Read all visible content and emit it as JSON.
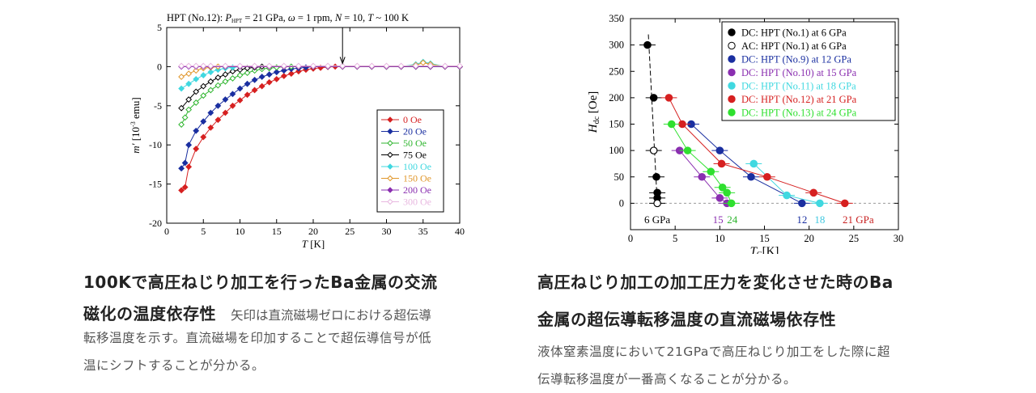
{
  "left_caption": {
    "title_line1": "100Kで高圧ねじり加工を行ったBa金属の交流",
    "title_line2": "磁化の温度依存性",
    "body_line1": "矢印は直流磁場ゼロにおける超伝導",
    "body_line2": "転移温度を示す。直流磁場を印加することで超伝導信号が低",
    "body_line3": "温にシフトすることが分かる。"
  },
  "right_caption": {
    "title_line1": "高圧ねじり加工の加工圧力を変化させた時のBa",
    "title_line2": "金属の超伝導転移温度の直流磁場依存性",
    "body_line1": "液体窒素温度において21GPaで高圧ねじり加工をした際に超",
    "body_line2": "伝導転移温度が一番高くなることが分かる。"
  },
  "chart_data": [
    {
      "type": "scatter",
      "title": "HPT (No.12): P_HPT = 21 GPa, ω = 1 rpm, N = 10, T ~ 100 K",
      "xlabel": "T [K]",
      "ylabel": "m' [10⁻³ emu]",
      "xlim": [
        0,
        40
      ],
      "ylim": [
        -20,
        5
      ],
      "xticks": [
        0,
        5,
        10,
        15,
        20,
        25,
        30,
        35,
        40
      ],
      "yticks": [
        5,
        0,
        -5,
        -10,
        -15,
        -20
      ],
      "legend_placement": "bottom-right",
      "arrow_at_x": 24,
      "series": [
        {
          "name": "0 Oe",
          "color": "#d62020",
          "marker": "filled-diamond",
          "x": [
            2,
            2.5,
            3,
            4,
            5,
            6,
            7,
            8,
            9,
            10,
            11,
            12,
            13,
            14,
            15,
            16,
            17,
            18,
            19,
            20,
            21,
            22,
            23,
            24,
            26,
            28,
            30,
            32,
            34,
            36,
            38,
            40
          ],
          "y": [
            -15.8,
            -15.4,
            -12.8,
            -10.5,
            -9,
            -7.8,
            -6.8,
            -5.9,
            -5,
            -4.3,
            -3.6,
            -3,
            -2.5,
            -2,
            -1.6,
            -1.2,
            -0.9,
            -0.6,
            -0.4,
            -0.25,
            -0.15,
            -0.05,
            0,
            0,
            0,
            0,
            0,
            0,
            0,
            0,
            0,
            0
          ]
        },
        {
          "name": "20 Oe",
          "color": "#1a2fa0",
          "marker": "filled-diamond",
          "x": [
            2,
            2.5,
            3,
            4,
            5,
            6,
            7,
            8,
            9,
            10,
            11,
            12,
            13,
            14,
            15,
            16,
            17,
            18,
            19,
            20,
            22,
            24,
            26,
            28,
            30,
            32,
            34,
            36,
            38,
            40
          ],
          "y": [
            -13,
            -12.3,
            -10,
            -8.2,
            -7,
            -5.9,
            -5,
            -4.2,
            -3.5,
            -2.8,
            -2.2,
            -1.7,
            -1.3,
            -1,
            -0.7,
            -0.5,
            -0.3,
            -0.2,
            -0.1,
            0,
            0,
            0,
            0,
            0,
            0,
            0,
            0,
            0,
            0,
            0
          ]
        },
        {
          "name": "50 Oe",
          "color": "#2fb52f",
          "marker": "open-diamond",
          "x": [
            2,
            2.5,
            3,
            4,
            5,
            6,
            7,
            8,
            9,
            10,
            11,
            12,
            13,
            14,
            15,
            16,
            17,
            18,
            20,
            22,
            24,
            26,
            28,
            30,
            32,
            34,
            36,
            38,
            40
          ],
          "y": [
            -7.4,
            -6.5,
            -5.5,
            -4.6,
            -3.7,
            -3,
            -2.4,
            -1.9,
            -1.5,
            -1.1,
            -0.8,
            -0.5,
            -0.3,
            -0.2,
            -0.1,
            0,
            0,
            0,
            0,
            0,
            0,
            0,
            0,
            0,
            0,
            0,
            0,
            0,
            0
          ]
        },
        {
          "name": "75 Oe",
          "color": "#000000",
          "marker": "open-diamond",
          "x": [
            2,
            3,
            4,
            5,
            6,
            7,
            8,
            9,
            10,
            11,
            12,
            13,
            14,
            16,
            18,
            20,
            22,
            24,
            26,
            28,
            30,
            32,
            34,
            36,
            38,
            40
          ],
          "y": [
            -5.3,
            -4.2,
            -3.2,
            -2.5,
            -1.9,
            -1.4,
            -1,
            -0.6,
            -0.4,
            -0.2,
            -0.1,
            0,
            0,
            0,
            0,
            0,
            0,
            0,
            0,
            0,
            0,
            0,
            0,
            0,
            0,
            0
          ]
        },
        {
          "name": "100 Oe",
          "color": "#40d8e0",
          "marker": "filled-diamond",
          "x": [
            2,
            3,
            4,
            5,
            6,
            7,
            8,
            9,
            10,
            12,
            14,
            16,
            18,
            20,
            22,
            24,
            26,
            28,
            30,
            32,
            34,
            35,
            36,
            38,
            40
          ],
          "y": [
            -2.8,
            -2.2,
            -1.6,
            -1.1,
            -0.7,
            -0.4,
            -0.2,
            -0.1,
            0,
            0,
            0,
            0,
            0,
            0,
            0,
            0,
            0,
            0,
            0,
            0,
            0.3,
            0.6,
            0.4,
            0,
            0
          ]
        },
        {
          "name": "150 Oe",
          "color": "#e0962a",
          "marker": "open-diamond",
          "x": [
            2,
            3,
            4,
            5,
            6,
            7,
            8,
            10,
            12,
            14,
            16,
            18,
            20,
            22,
            24,
            26,
            28,
            30,
            32,
            34,
            35,
            36,
            38,
            40
          ],
          "y": [
            -1.3,
            -0.9,
            -0.5,
            -0.2,
            -0.1,
            0,
            0,
            0,
            0,
            0,
            0,
            0,
            0,
            0,
            0,
            0,
            0,
            0,
            0,
            0.2,
            0.5,
            0.3,
            0,
            0
          ]
        },
        {
          "name": "200 Oe",
          "color": "#8a2fb0",
          "marker": "filled-diamond",
          "x": [
            2,
            3,
            4,
            5,
            6,
            8,
            10,
            12,
            14,
            16,
            18,
            20,
            22,
            24,
            26,
            28,
            30,
            32,
            34,
            36,
            38,
            40
          ],
          "y": [
            0,
            0,
            0,
            0,
            0,
            0,
            0,
            0,
            0,
            0,
            0,
            0,
            0,
            0,
            0,
            0,
            0,
            0,
            0,
            0,
            0,
            0
          ]
        },
        {
          "name": "300 Oe",
          "color": "#e8b8e0",
          "marker": "open-diamond",
          "x": [
            2,
            3,
            4,
            5,
            6,
            8,
            10,
            12,
            14,
            16,
            18,
            20,
            22,
            24,
            26,
            28,
            30,
            32,
            34,
            36,
            38,
            40
          ],
          "y": [
            0.1,
            0.1,
            0.1,
            0.1,
            0.1,
            0.1,
            0.1,
            0.1,
            0.1,
            0.1,
            0.1,
            0.1,
            0.1,
            0.1,
            0.1,
            0.1,
            0.1,
            0.1,
            0.1,
            0.1,
            0.1,
            0.1
          ]
        }
      ]
    },
    {
      "type": "scatter",
      "xlabel": "Tc [K]",
      "ylabel": "Hdc [Oe]",
      "xlim": [
        0,
        30
      ],
      "ylim": [
        -50,
        350
      ],
      "xticks": [
        0,
        5,
        10,
        15,
        20,
        25,
        30
      ],
      "yticks": [
        0,
        50,
        100,
        150,
        200,
        250,
        300,
        350
      ],
      "legend_placement": "top-right",
      "annotations": [
        {
          "text": "6 GPa",
          "x": 3,
          "color": "#000000"
        },
        {
          "text": "15",
          "x": 9.8,
          "color": "#8a2fb0"
        },
        {
          "text": "24",
          "x": 11.4,
          "color": "#2fb52f"
        },
        {
          "text": "12",
          "x": 19.2,
          "color": "#1a2fa0"
        },
        {
          "text": "18",
          "x": 21.2,
          "color": "#40c8e0"
        },
        {
          "text": "21 GPa",
          "x": 25.5,
          "color": "#c82020"
        }
      ],
      "series": [
        {
          "name": "DC: HPT (No.1) at 6 GPa",
          "color": "#000000",
          "filled": true,
          "x": [
            1.9,
            2.6,
            2.9,
            3.0,
            3.0
          ],
          "y": [
            300,
            200,
            50,
            20,
            10
          ]
        },
        {
          "name": "AC: HPT (No.1) at 6 GPa",
          "color": "#000000",
          "filled": false,
          "x": [
            2.6,
            3.0
          ],
          "y": [
            100,
            0
          ]
        },
        {
          "name": "DC: HPT (No.9) at 12 GPa",
          "color": "#1a2fa0",
          "filled": true,
          "x": [
            6.8,
            10,
            13.5,
            19.2
          ],
          "y": [
            150,
            100,
            50,
            0
          ]
        },
        {
          "name": "DC: HPT (No.10) at 15 GPa",
          "color": "#8a2fb0",
          "filled": true,
          "x": [
            5.5,
            8.0,
            10.0,
            10.8
          ],
          "y": [
            100,
            50,
            10,
            0
          ]
        },
        {
          "name": "DC: HPT (No.11) at 18 GPa",
          "color": "#40d8e0",
          "filled": true,
          "x": [
            13.8,
            17.5,
            21.2
          ],
          "y": [
            75,
            15,
            0
          ]
        },
        {
          "name": "DC: HPT (No.12) at 21 GPa",
          "color": "#d62020",
          "filled": true,
          "x": [
            4.3,
            5.8,
            10.2,
            15.3,
            20.5,
            24.0
          ],
          "y": [
            200,
            150,
            75,
            50,
            20,
            0
          ]
        },
        {
          "name": "DC: HPT (No.13) at 24 GPa",
          "color": "#2fe02f",
          "filled": true,
          "x": [
            4.6,
            6.4,
            9.0,
            10.3,
            10.8,
            11.3
          ],
          "y": [
            150,
            100,
            60,
            30,
            20,
            0
          ]
        }
      ]
    }
  ]
}
